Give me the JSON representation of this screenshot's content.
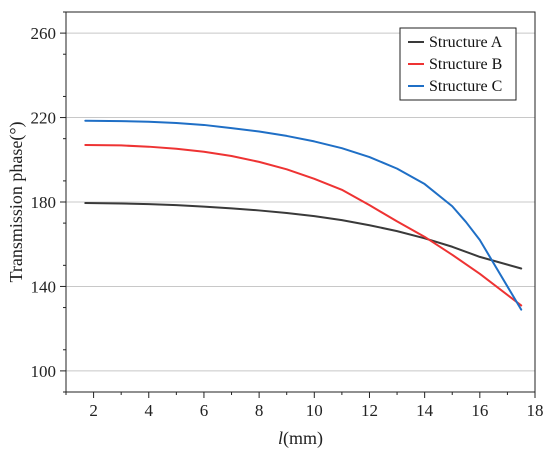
{
  "chart_data": {
    "type": "line",
    "xlabel_italic": "l",
    "xlabel_rest": "(mm)",
    "ylabel": "Transmission phase(°)",
    "xlim": [
      1,
      18
    ],
    "ylim": [
      90,
      270
    ],
    "xticks": [
      2,
      4,
      6,
      8,
      10,
      12,
      14,
      16,
      18
    ],
    "yticks": [
      100,
      140,
      180,
      220,
      260
    ],
    "grid": "horizontal",
    "legend_position": "top-right",
    "series": [
      {
        "name": "Structure A",
        "color": "#3a3a3a",
        "x": [
          1.7,
          3,
          4,
          5,
          6,
          7,
          8,
          9,
          10,
          11,
          12,
          13,
          14,
          15,
          16,
          17.5
        ],
        "y": [
          179.5,
          179.3,
          179.0,
          178.5,
          177.8,
          177.0,
          176.0,
          174.8,
          173.3,
          171.4,
          169.0,
          166.2,
          162.8,
          158.8,
          154.0,
          148.5
        ]
      },
      {
        "name": "Structure B",
        "color": "#ee3333",
        "x": [
          1.7,
          3,
          4,
          5,
          6,
          7,
          8,
          9,
          10,
          11,
          12,
          13,
          14,
          15,
          16,
          17.5
        ],
        "y": [
          207.0,
          206.8,
          206.2,
          205.2,
          203.8,
          201.8,
          199.0,
          195.5,
          191.0,
          185.8,
          178.5,
          170.8,
          163.5,
          155.0,
          146.0,
          131.0
        ]
      },
      {
        "name": "Structure C",
        "color": "#1f6fc6",
        "x": [
          1.7,
          3,
          4,
          5,
          6,
          7,
          8,
          9,
          10,
          11,
          12,
          13,
          14,
          15,
          15.5,
          16,
          16.5,
          17,
          17.5
        ],
        "y": [
          218.5,
          218.3,
          218.0,
          217.4,
          216.5,
          215.0,
          213.4,
          211.3,
          208.7,
          205.5,
          201.3,
          195.8,
          188.5,
          178.0,
          170.5,
          162.0,
          151.0,
          140.0,
          129.0
        ]
      }
    ]
  }
}
